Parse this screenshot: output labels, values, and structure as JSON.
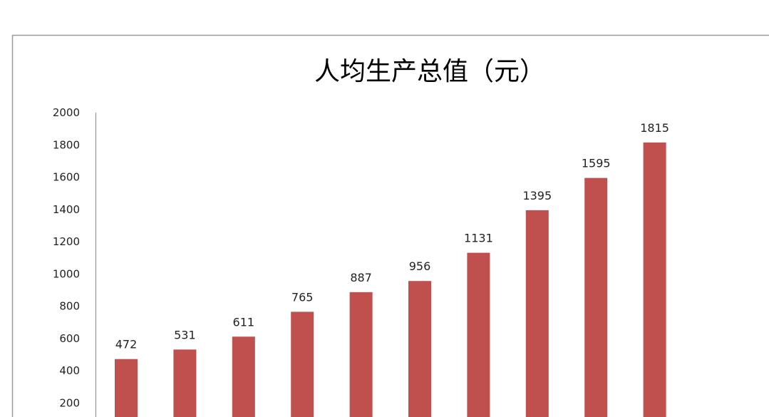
{
  "chart_data": {
    "type": "bar",
    "title": "人均生产总值（元）",
    "xlabel": "",
    "ylabel": "",
    "ylim": [
      0,
      2000
    ],
    "yticks": [
      200,
      400,
      600,
      800,
      1000,
      1200,
      1400,
      1600,
      1800,
      2000
    ],
    "values": [
      472,
      531,
      611,
      765,
      887,
      956,
      1131,
      1395,
      1595,
      1815
    ],
    "data_labels": true,
    "grid": false,
    "legend": "none",
    "bar_color": "#C0504D"
  }
}
